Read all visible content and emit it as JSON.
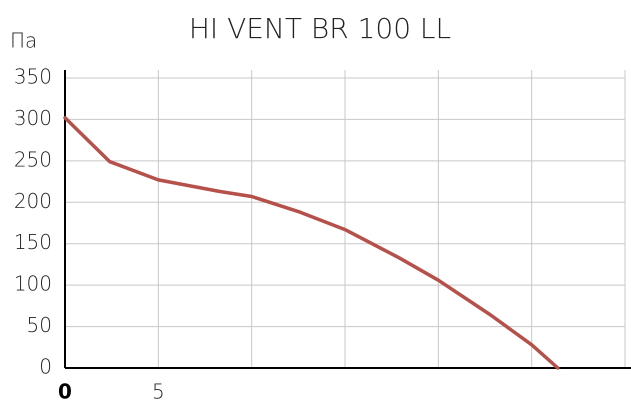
{
  "chart_data": {
    "type": "line",
    "title": "HI VENT BR 100 LL",
    "y_label": "Па",
    "x": [
      0,
      2.4,
      5,
      8.3,
      10,
      12.6,
      15,
      17.9,
      20,
      22.8,
      25,
      26.4
    ],
    "series": [
      {
        "name": "HI VENT BR 100 LL",
        "color": "#b5504a",
        "values": [
          302,
          249,
          227,
          213,
          207,
          188,
          167,
          133,
          106,
          64,
          28,
          0
        ]
      }
    ],
    "xlim": [
      0,
      30
    ],
    "xticks": [
      0,
      5
    ],
    "x_grid": [
      10,
      15,
      20,
      25,
      30
    ],
    "ylim": [
      0,
      350
    ],
    "yticks": [
      0,
      50,
      100,
      150,
      200,
      250,
      300,
      350
    ],
    "grid": true
  }
}
